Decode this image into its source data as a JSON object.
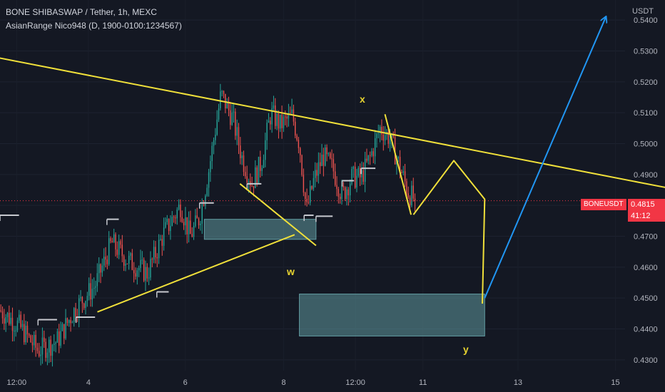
{
  "header": {
    "title": "BONE SHIBASWAP / Tether, 1h, MEXC",
    "indicator": "AsianRange Nico948 (D, 1900-0100:1234567)",
    "currency": "USDT"
  },
  "price": {
    "last": "0.4815",
    "countdown": "41:12",
    "ticker": "BONEUSDT"
  },
  "wave_labels": {
    "w": "w",
    "x": "x",
    "y": "y"
  },
  "colors": {
    "background": "#141823",
    "up": "#26a69a",
    "down": "#ef5350",
    "trendline": "#f0e03a",
    "projection": "#2196f3",
    "zone": "#6fb3b8",
    "range": "#c7c9cf",
    "badge": "#f23645"
  },
  "chart_data": {
    "type": "candlestick",
    "x_ticks": [
      "12:00",
      "4",
      "6",
      "8",
      "12:00",
      "11",
      "13",
      "15"
    ],
    "y_ticks": [
      "0.5400",
      "0.5300",
      "0.5200",
      "0.5100",
      "0.5000",
      "0.4900",
      "0.4800",
      "0.4700",
      "0.4600",
      "0.4500",
      "0.4400",
      "0.4300"
    ],
    "ylim": [
      0.4265,
      0.5465
    ],
    "last_price": 0.4815,
    "path_points": [
      {
        "t": 0,
        "p": 0.446
      },
      {
        "t": 0.04,
        "p": 0.441
      },
      {
        "t": 0.08,
        "p": 0.433
      },
      {
        "t": 0.12,
        "p": 0.436
      },
      {
        "t": 0.16,
        "p": 0.447
      },
      {
        "t": 0.2,
        "p": 0.454
      },
      {
        "t": 0.235,
        "p": 0.468
      },
      {
        "t": 0.27,
        "p": 0.462
      },
      {
        "t": 0.31,
        "p": 0.458
      },
      {
        "t": 0.345,
        "p": 0.471
      },
      {
        "t": 0.38,
        "p": 0.48
      },
      {
        "t": 0.4,
        "p": 0.47
      },
      {
        "t": 0.42,
        "p": 0.476
      },
      {
        "t": 0.44,
        "p": 0.492
      },
      {
        "t": 0.465,
        "p": 0.516
      },
      {
        "t": 0.49,
        "p": 0.508
      },
      {
        "t": 0.51,
        "p": 0.495
      },
      {
        "t": 0.53,
        "p": 0.487
      },
      {
        "t": 0.55,
        "p": 0.494
      },
      {
        "t": 0.57,
        "p": 0.51
      },
      {
        "t": 0.59,
        "p": 0.506
      },
      {
        "t": 0.615,
        "p": 0.509
      },
      {
        "t": 0.63,
        "p": 0.5
      },
      {
        "t": 0.645,
        "p": 0.478
      },
      {
        "t": 0.66,
        "p": 0.488
      },
      {
        "t": 0.68,
        "p": 0.496
      },
      {
        "t": 0.7,
        "p": 0.492
      },
      {
        "t": 0.72,
        "p": 0.483
      },
      {
        "t": 0.74,
        "p": 0.489
      },
      {
        "t": 0.76,
        "p": 0.489
      },
      {
        "t": 0.78,
        "p": 0.496
      },
      {
        "t": 0.8,
        "p": 0.505
      },
      {
        "t": 0.82,
        "p": 0.502
      },
      {
        "t": 0.84,
        "p": 0.493
      },
      {
        "t": 0.86,
        "p": 0.484
      },
      {
        "t": 0.875,
        "p": 0.4815
      }
    ],
    "range_levels": [
      {
        "t0": 0.0,
        "t1": 0.04,
        "p": 0.4768
      },
      {
        "t0": 0.08,
        "t1": 0.12,
        "p": 0.443
      },
      {
        "t0": 0.16,
        "t1": 0.2,
        "p": 0.4438
      },
      {
        "t0": 0.225,
        "t1": 0.25,
        "p": 0.4755
      },
      {
        "t0": 0.33,
        "t1": 0.355,
        "p": 0.452
      },
      {
        "t0": 0.42,
        "t1": 0.45,
        "p": 0.4808
      },
      {
        "t0": 0.52,
        "t1": 0.55,
        "p": 0.487
      },
      {
        "t0": 0.64,
        "t1": 0.66,
        "p": 0.4768
      },
      {
        "t0": 0.665,
        "t1": 0.7,
        "p": 0.4765
      },
      {
        "t0": 0.72,
        "t1": 0.745,
        "p": 0.488
      },
      {
        "t0": 0.76,
        "t1": 0.79,
        "p": 0.492
      }
    ],
    "zones": [
      {
        "t0": 0.43,
        "t1": 0.665,
        "p0": 0.4755,
        "p1": 0.469
      },
      {
        "t0": 0.63,
        "t1": 1.02,
        "p0": 0.4513,
        "p1": 0.4377
      }
    ],
    "trendlines": [
      {
        "kind": "resistance",
        "points": [
          [
            -0.01,
            0.528
          ],
          [
            1.41,
            0.4855
          ]
        ]
      },
      {
        "kind": "support",
        "points": [
          [
            0.205,
            0.4455
          ],
          [
            0.62,
            0.4705
          ]
        ]
      },
      {
        "kind": "w-leg",
        "points": [
          [
            0.505,
            0.487
          ],
          [
            0.665,
            0.467
          ]
        ]
      },
      {
        "kind": "x-leg",
        "points": [
          [
            0.81,
            0.5095
          ],
          [
            0.865,
            0.477
          ]
        ]
      },
      {
        "kind": "wave-projection",
        "points": [
          [
            0.87,
            0.477
          ],
          [
            0.955,
            0.4945
          ],
          [
            1.02,
            0.482
          ],
          [
            1.015,
            0.4482
          ]
        ]
      },
      {
        "kind": "arrow-target",
        "points": [
          [
            1.02,
            0.45
          ],
          [
            1.275,
            0.541
          ]
        ]
      }
    ]
  }
}
